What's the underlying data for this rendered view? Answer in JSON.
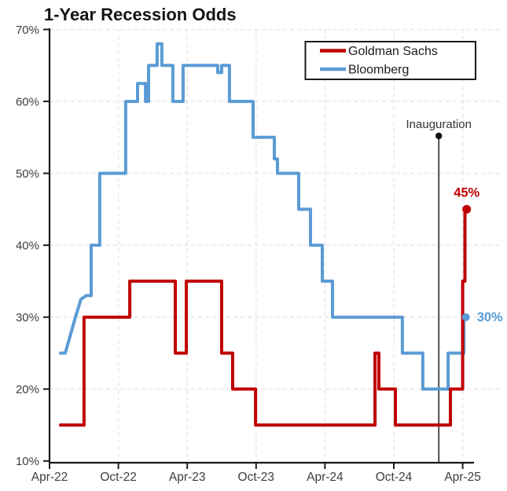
{
  "title": "1-Year Recession Odds",
  "colors": {
    "goldman_red": "#c00000",
    "bloomberg_blue": "#5b9bd5",
    "axis": "#1a1a1a",
    "grid": "#e4e4e4",
    "tick_text": "#3d3d3d",
    "inauguration_line": "#2a2a2a",
    "background": "#ffffff"
  },
  "legend": {
    "items": [
      {
        "label": "Goldman Sachs",
        "color_key": "goldman_red"
      },
      {
        "label": "Bloomberg",
        "color_key": "bloomberg_blue"
      }
    ]
  },
  "annotations": {
    "inauguration": {
      "label": "Inauguration",
      "month": 33.92,
      "top_value": 55.2
    },
    "goldman_end": {
      "label": "45%",
      "month": 36.35,
      "value": 45
    },
    "bloomberg_end": {
      "label": "30%",
      "month": 36.28,
      "value": 30
    }
  },
  "chart_data": {
    "type": "line",
    "step": true,
    "title": "1-Year Recession Odds",
    "xlabel": "",
    "ylabel": "",
    "x_unit": "months since Apr-2022",
    "x_axis": {
      "tick_labels": [
        "Apr-22",
        "Oct-22",
        "Apr-23",
        "Oct-23",
        "Apr-24",
        "Oct-24",
        "Apr-25"
      ],
      "tick_months": [
        0,
        6,
        12,
        18,
        24,
        30,
        36
      ]
    },
    "y_axis": {
      "tick_labels": [
        "10%",
        "20%",
        "30%",
        "40%",
        "50%",
        "60%",
        "70%"
      ],
      "tick_values": [
        10,
        20,
        30,
        40,
        50,
        60,
        70
      ],
      "min": 10,
      "max": 70,
      "unit": "percent"
    },
    "grid": "dashed, both directions",
    "legend_position": "top-right",
    "series": [
      {
        "name": "Goldman Sachs",
        "color_key": "goldman_red",
        "points": [
          [
            0.96,
            15
          ],
          [
            3.01,
            15
          ],
          [
            3.01,
            30
          ],
          [
            6.99,
            30
          ],
          [
            6.99,
            35
          ],
          [
            10.96,
            35
          ],
          [
            10.96,
            25
          ],
          [
            11.92,
            25
          ],
          [
            11.92,
            35
          ],
          [
            15.0,
            35
          ],
          [
            15.0,
            25
          ],
          [
            15.96,
            25
          ],
          [
            15.96,
            20
          ],
          [
            17.95,
            20
          ],
          [
            17.95,
            15
          ],
          [
            28.36,
            15
          ],
          [
            28.36,
            25
          ],
          [
            28.7,
            25
          ],
          [
            28.7,
            20
          ],
          [
            30.14,
            20
          ],
          [
            30.14,
            15
          ],
          [
            34.93,
            15
          ],
          [
            34.93,
            20
          ],
          [
            36.0,
            20
          ],
          [
            36.0,
            35
          ],
          [
            36.2,
            35
          ],
          [
            36.2,
            45
          ],
          [
            36.35,
            45
          ]
        ]
      },
      {
        "name": "Bloomberg",
        "color_key": "bloomberg_blue",
        "points": [
          [
            0.96,
            25
          ],
          [
            1.37,
            25
          ],
          [
            2.26,
            30
          ],
          [
            2.74,
            32.5
          ],
          [
            3.22,
            33
          ],
          [
            3.63,
            33
          ],
          [
            3.63,
            40
          ],
          [
            4.38,
            40
          ],
          [
            4.38,
            50
          ],
          [
            6.64,
            50
          ],
          [
            6.64,
            60
          ],
          [
            7.67,
            60
          ],
          [
            7.67,
            62.5
          ],
          [
            8.36,
            62.5
          ],
          [
            8.36,
            60
          ],
          [
            8.63,
            60
          ],
          [
            8.63,
            65
          ],
          [
            9.38,
            65
          ],
          [
            9.38,
            68
          ],
          [
            9.79,
            68
          ],
          [
            9.79,
            65
          ],
          [
            10.75,
            65
          ],
          [
            10.75,
            60
          ],
          [
            11.64,
            60
          ],
          [
            11.64,
            65
          ],
          [
            14.66,
            65
          ],
          [
            14.66,
            64
          ],
          [
            15.0,
            64
          ],
          [
            15.0,
            65
          ],
          [
            15.68,
            65
          ],
          [
            15.68,
            60
          ],
          [
            17.74,
            60
          ],
          [
            17.74,
            55
          ],
          [
            19.59,
            55
          ],
          [
            19.59,
            52
          ],
          [
            19.86,
            52
          ],
          [
            19.86,
            50
          ],
          [
            21.71,
            50
          ],
          [
            21.71,
            45
          ],
          [
            22.74,
            45
          ],
          [
            22.74,
            40
          ],
          [
            23.77,
            40
          ],
          [
            23.77,
            35
          ],
          [
            24.66,
            35
          ],
          [
            24.66,
            30
          ],
          [
            30.75,
            30
          ],
          [
            30.75,
            25
          ],
          [
            32.53,
            25
          ],
          [
            32.53,
            20
          ],
          [
            34.73,
            20
          ],
          [
            34.73,
            25
          ],
          [
            36.1,
            25
          ],
          [
            36.1,
            30
          ],
          [
            36.28,
            30
          ]
        ]
      }
    ]
  }
}
